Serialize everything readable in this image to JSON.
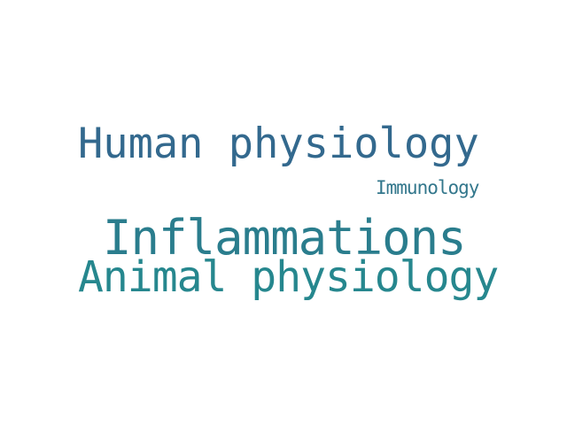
{
  "wordcloud": {
    "words": [
      {
        "text": "Human physiology",
        "color": "#33698e"
      },
      {
        "text": "Immunology",
        "color": "#33778c"
      },
      {
        "text": "Inflammations",
        "color": "#2a7d8d"
      },
      {
        "text": "Animal physiology",
        "color": "#26878e"
      }
    ]
  }
}
